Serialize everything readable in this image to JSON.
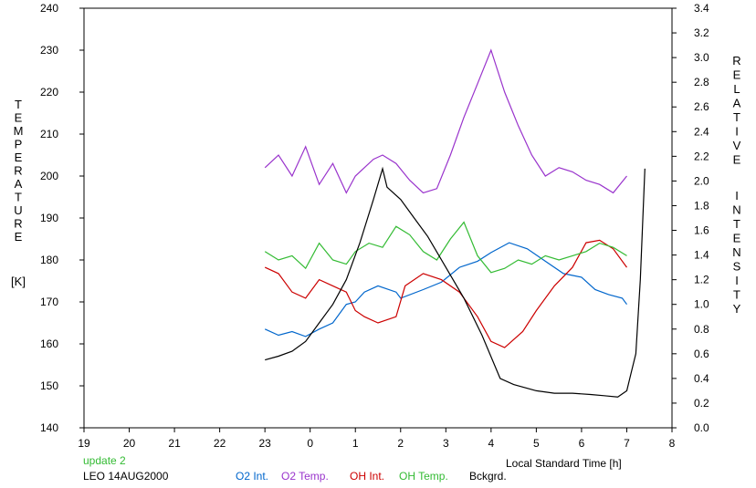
{
  "chart_data": {
    "type": "line",
    "title": "",
    "xlabel": "Local Standard Time [h]",
    "ylabel_left": "TEMPERATURE [K]",
    "ylabel_left_letters": [
      "T",
      "E",
      "M",
      "P",
      "E",
      "R",
      "A",
      "T",
      "U",
      "R",
      "E"
    ],
    "ylabel_left_unit": "[K]",
    "ylabel_right": "RELATIVE INTENSITY",
    "ylabel_right_line1": [
      "R",
      "E",
      "L",
      "A",
      "T",
      "I",
      "V",
      "E"
    ],
    "ylabel_right_line2": [
      "I",
      "N",
      "T",
      "E",
      "N",
      "S",
      "I",
      "T",
      "Y"
    ],
    "x_tick_labels": [
      "19",
      "20",
      "21",
      "22",
      "23",
      "0",
      "1",
      "2",
      "3",
      "4",
      "5",
      "6",
      "7",
      "8"
    ],
    "y_left_ticks": [
      140,
      150,
      160,
      170,
      180,
      190,
      200,
      210,
      220,
      230,
      240
    ],
    "y_right_ticks": [
      "0.0",
      "0.2",
      "0.4",
      "0.6",
      "0.8",
      "1.0",
      "1.2",
      "1.4",
      "1.6",
      "1.8",
      "2.0",
      "2.2",
      "2.4",
      "2.6",
      "2.8",
      "3.0",
      "3.2",
      "3.4"
    ],
    "xlim": [
      19,
      32
    ],
    "ylim_left": [
      140,
      240
    ],
    "ylim_right": [
      0,
      3.4
    ],
    "grid": false,
    "legend_position": "bottom",
    "annotation_update": "update 2",
    "annotation_station": "LEO 14AUG2000",
    "series": [
      {
        "name": "O2 Int.",
        "color": "#0066cc",
        "axis": "right",
        "x": [
          23.0,
          23.3,
          23.6,
          23.9,
          24.2,
          24.5,
          24.8,
          25.0,
          25.2,
          25.5,
          25.9,
          26.0,
          26.5,
          26.9,
          27.3,
          27.7,
          28.0,
          28.4,
          28.8,
          29.2,
          29.6,
          30.0,
          30.3,
          30.6,
          30.9,
          31.0
        ],
        "y": [
          0.8,
          0.75,
          0.78,
          0.74,
          0.8,
          0.85,
          1.0,
          1.02,
          1.1,
          1.15,
          1.1,
          1.05,
          1.12,
          1.18,
          1.3,
          1.35,
          1.42,
          1.5,
          1.45,
          1.35,
          1.25,
          1.22,
          1.12,
          1.08,
          1.05,
          1.0
        ]
      },
      {
        "name": "O2 Temp.",
        "color": "#9933cc",
        "axis": "left",
        "x": [
          23.0,
          23.3,
          23.6,
          23.9,
          24.2,
          24.5,
          24.8,
          25.0,
          25.4,
          25.6,
          25.9,
          26.2,
          26.5,
          26.8,
          27.1,
          27.4,
          27.7,
          28.0,
          28.3,
          28.6,
          28.9,
          29.2,
          29.5,
          29.8,
          30.1,
          30.4,
          30.7,
          31.0
        ],
        "y": [
          202,
          205,
          200,
          207,
          198,
          203,
          196,
          200,
          204,
          205,
          203,
          199,
          196,
          197,
          205,
          214,
          222,
          230,
          220,
          212,
          205,
          200,
          202,
          201,
          199,
          198,
          196,
          200
        ]
      },
      {
        "name": "OH Int.",
        "color": "#cc0000",
        "axis": "right",
        "x": [
          23.0,
          23.3,
          23.6,
          23.9,
          24.2,
          24.5,
          24.8,
          25.0,
          25.2,
          25.5,
          25.9,
          26.1,
          26.5,
          26.9,
          27.3,
          27.7,
          28.0,
          28.3,
          28.7,
          29.0,
          29.4,
          29.8,
          30.1,
          30.4,
          30.7,
          31.0
        ],
        "y": [
          1.3,
          1.25,
          1.1,
          1.05,
          1.2,
          1.15,
          1.1,
          0.95,
          0.9,
          0.85,
          0.9,
          1.15,
          1.25,
          1.2,
          1.1,
          0.9,
          0.7,
          0.65,
          0.78,
          0.95,
          1.15,
          1.3,
          1.5,
          1.52,
          1.45,
          1.3
        ]
      },
      {
        "name": "OH Temp.",
        "color": "#33bb33",
        "axis": "left",
        "x": [
          23.0,
          23.3,
          23.6,
          23.9,
          24.2,
          24.5,
          24.8,
          25.0,
          25.3,
          25.6,
          25.9,
          26.2,
          26.5,
          26.8,
          27.1,
          27.4,
          27.7,
          28.0,
          28.3,
          28.6,
          28.9,
          29.2,
          29.5,
          29.8,
          30.1,
          30.4,
          30.7,
          31.0
        ],
        "y": [
          182,
          180,
          181,
          178,
          184,
          180,
          179,
          182,
          184,
          183,
          188,
          186,
          182,
          180,
          185,
          189,
          181,
          177,
          178,
          180,
          179,
          181,
          180,
          181,
          182,
          184,
          183,
          181
        ]
      },
      {
        "name": "Bckgrd.",
        "color": "#000000",
        "axis": "right",
        "x": [
          23.0,
          23.3,
          23.6,
          23.9,
          24.2,
          24.5,
          24.8,
          25.1,
          25.4,
          25.6,
          25.7,
          26.0,
          26.3,
          26.6,
          27.0,
          27.4,
          27.8,
          28.2,
          28.5,
          28.8,
          29.0,
          29.4,
          29.8,
          30.2,
          30.5,
          30.8,
          31.0,
          31.1,
          31.2,
          31.3,
          31.4
        ],
        "y": [
          0.55,
          0.58,
          0.62,
          0.7,
          0.85,
          1.0,
          1.2,
          1.5,
          1.85,
          2.1,
          1.95,
          1.85,
          1.7,
          1.55,
          1.3,
          1.05,
          0.75,
          0.4,
          0.35,
          0.32,
          0.3,
          0.28,
          0.28,
          0.27,
          0.26,
          0.25,
          0.3,
          0.45,
          0.6,
          1.2,
          2.1
        ]
      }
    ]
  }
}
